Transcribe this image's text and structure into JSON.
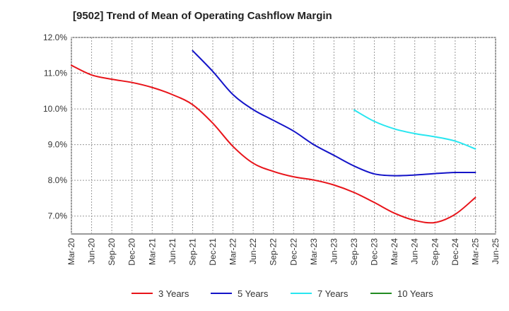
{
  "chart_data": {
    "type": "line",
    "title": "[9502]  Trend of Mean of Operating Cashflow Margin",
    "xlabel": "",
    "ylabel": "",
    "x_tick_labels": [
      "Mar-20",
      "Jun-20",
      "Sep-20",
      "Dec-20",
      "Mar-21",
      "Jun-21",
      "Sep-21",
      "Dec-21",
      "Mar-22",
      "Jun-22",
      "Sep-22",
      "Dec-22",
      "Mar-23",
      "Jun-23",
      "Sep-23",
      "Dec-23",
      "Mar-24",
      "Jun-24",
      "Sep-24",
      "Dec-24",
      "Mar-25",
      "Jun-25"
    ],
    "y_tick_labels": [
      "12.0%",
      "11.0%",
      "10.0%",
      "9.0%",
      "8.0%",
      "7.0%"
    ],
    "ylim": [
      6.5,
      12.0
    ],
    "y_ticks": [
      12.0,
      11.0,
      10.0,
      9.0,
      8.0,
      7.0
    ],
    "grid": true,
    "legend_position": "bottom",
    "series": [
      {
        "name": "3 Years",
        "color": "#e8141a",
        "x": [
          "Mar-20",
          "Jun-20",
          "Sep-20",
          "Dec-20",
          "Mar-21",
          "Jun-21",
          "Sep-21",
          "Dec-21",
          "Mar-22",
          "Jun-22",
          "Sep-22",
          "Dec-22",
          "Mar-23",
          "Jun-23",
          "Sep-23",
          "Dec-23",
          "Mar-24",
          "Jun-24",
          "Sep-24",
          "Dec-24",
          "Mar-25"
        ],
        "values": [
          11.22,
          10.95,
          10.83,
          10.74,
          10.6,
          10.4,
          10.12,
          9.6,
          8.95,
          8.48,
          8.25,
          8.1,
          8.01,
          7.87,
          7.66,
          7.38,
          7.08,
          6.88,
          6.82,
          7.05,
          7.52
        ]
      },
      {
        "name": "5 Years",
        "color": "#1414c8",
        "x": [
          "Sep-21",
          "Dec-21",
          "Mar-22",
          "Jun-22",
          "Sep-22",
          "Dec-22",
          "Mar-23",
          "Jun-23",
          "Sep-23",
          "Dec-23",
          "Mar-24",
          "Jun-24",
          "Sep-24",
          "Dec-24",
          "Mar-25"
        ],
        "values": [
          11.63,
          11.05,
          10.4,
          9.98,
          9.68,
          9.38,
          9.0,
          8.7,
          8.4,
          8.18,
          8.13,
          8.15,
          8.19,
          8.22,
          8.22
        ]
      },
      {
        "name": "7 Years",
        "color": "#28e6f0",
        "x": [
          "Sep-23",
          "Dec-23",
          "Mar-24",
          "Jun-24",
          "Sep-24",
          "Dec-24",
          "Mar-25"
        ],
        "values": [
          9.97,
          9.65,
          9.44,
          9.31,
          9.22,
          9.1,
          8.88
        ]
      },
      {
        "name": "10 Years",
        "color": "#228b22",
        "x": [],
        "values": []
      }
    ]
  }
}
